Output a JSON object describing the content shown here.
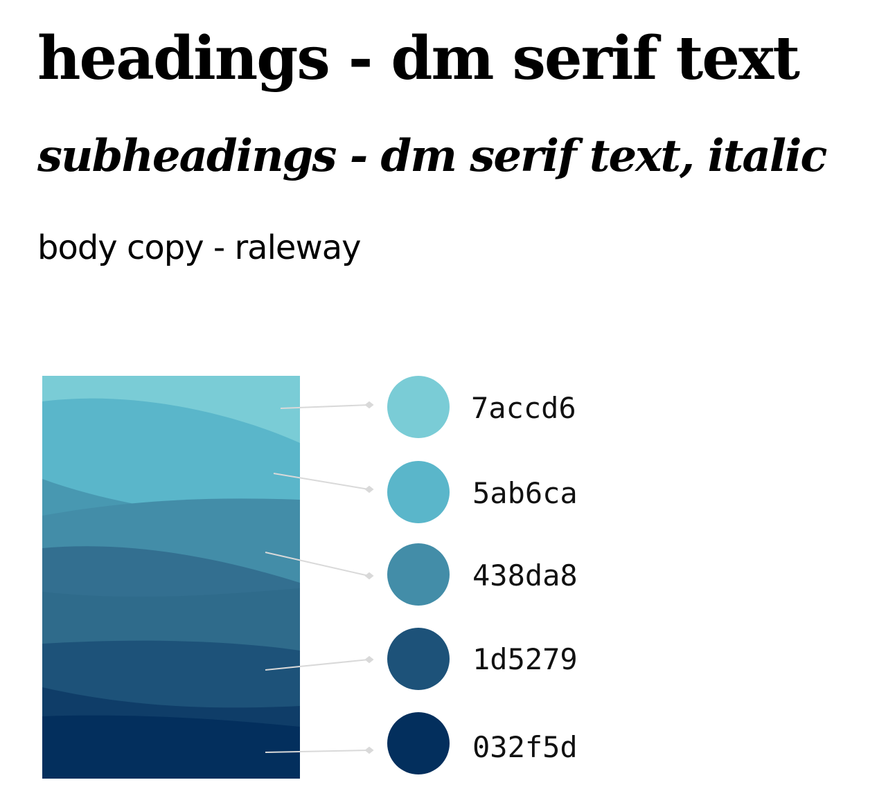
{
  "typography": {
    "heading": "headings - dm serif text",
    "subheading": "subheadings - dm serif text, italic",
    "body": "body copy - raleway"
  },
  "palette": [
    {
      "hex": "7accd6",
      "color": "#7accd6"
    },
    {
      "hex": "5ab6ca",
      "color": "#5ab6ca"
    },
    {
      "hex": "438da8",
      "color": "#438da8"
    },
    {
      "hex": "1d5279",
      "color": "#1d5279"
    },
    {
      "hex": "032f5d",
      "color": "#032f5d"
    }
  ]
}
